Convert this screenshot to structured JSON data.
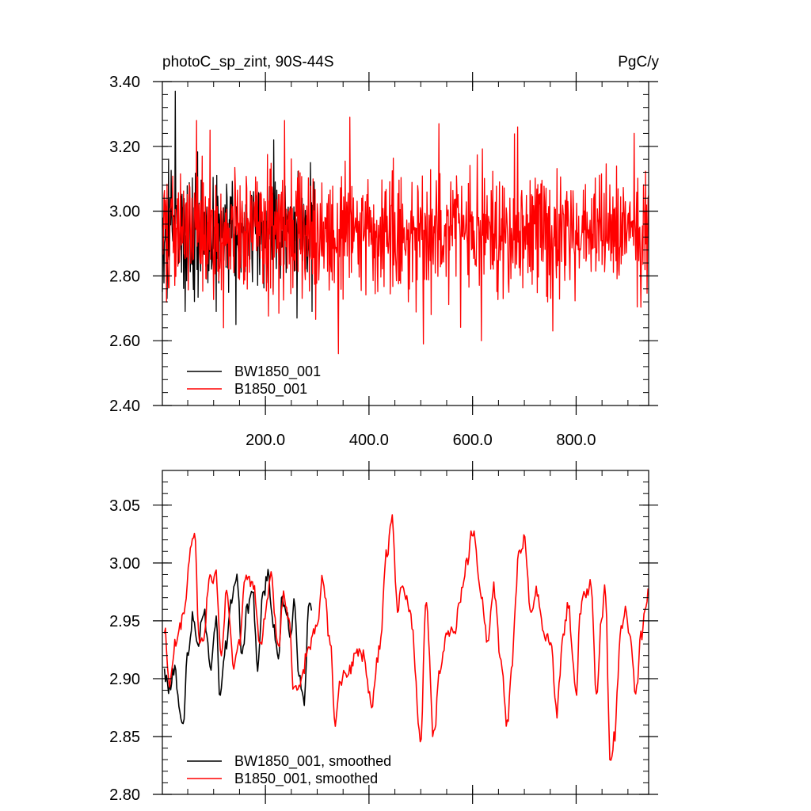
{
  "colors": {
    "background": "#ffffff",
    "axis": "#000000",
    "series_black": "#000000",
    "series_red": "#ff0000"
  },
  "chart_data": [
    {
      "type": "line",
      "title": "photoC_sp_zint, 90S-44S",
      "units": "PgC/y",
      "xlim": [
        1,
        940
      ],
      "ylim": [
        2.4,
        3.4
      ],
      "x_ticks": [
        200,
        400,
        600,
        800
      ],
      "x_tick_labels": [
        "200.0",
        "400.0",
        "600.0",
        "800.0"
      ],
      "x_minor_step": 50,
      "y_ticks": [
        2.4,
        2.6,
        2.8,
        3.0,
        3.2,
        3.4
      ],
      "y_tick_labels": [
        "2.40",
        "2.60",
        "2.80",
        "3.00",
        "3.20",
        "3.40"
      ],
      "y_minor_step": 0.04,
      "legend_position": "bottom-left",
      "series": [
        {
          "name": "BW1850_001",
          "color": "#000000",
          "start_year": 1,
          "end_year": 295,
          "mean": 2.93,
          "sd": 0.11,
          "min": 2.65,
          "max": 3.37,
          "seed": 17,
          "anchors": [
            [
              1,
              2.75
            ],
            [
              10,
              2.73
            ],
            [
              26,
              3.37
            ],
            [
              45,
              2.69
            ],
            [
              143,
              2.65
            ],
            [
              216,
              3.22
            ],
            [
              261,
              2.67
            ],
            [
              287,
              3.15
            ]
          ]
        },
        {
          "name": "B1850_001",
          "color": "#ff0000",
          "start_year": 1,
          "end_year": 940,
          "mean": 2.94,
          "sd": 0.11,
          "min": 2.56,
          "max": 3.29,
          "seed": 101,
          "anchors": [
            [
              67,
              3.28
            ],
            [
              119,
              2.64
            ],
            [
              237,
              3.28
            ],
            [
              341,
              2.56
            ],
            [
              363,
              3.29
            ],
            [
              505,
              2.59
            ],
            [
              535,
              3.27
            ],
            [
              617,
              2.6
            ],
            [
              687,
              3.26
            ],
            [
              755,
              2.63
            ],
            [
              912,
              3.24
            ]
          ]
        }
      ]
    },
    {
      "type": "line",
      "xlim": [
        1,
        940
      ],
      "ylim": [
        2.8,
        3.08
      ],
      "x_ticks": [
        200,
        400,
        600,
        800
      ],
      "x_minor_step": 50,
      "y_ticks": [
        2.8,
        2.85,
        2.9,
        2.95,
        3.0,
        3.05
      ],
      "y_tick_labels": [
        "2.80",
        "2.85",
        "2.90",
        "2.95",
        "3.00",
        "3.05"
      ],
      "y_minor_step": 0.01,
      "legend_position": "bottom-left",
      "series": [
        {
          "name": "BW1850_001, smoothed",
          "color": "#000000",
          "start_year": 5,
          "end_year": 290,
          "anchors": [
            [
              5,
              2.905
            ],
            [
              15,
              2.89
            ],
            [
              25,
              2.91
            ],
            [
              35,
              2.873
            ],
            [
              40,
              2.855
            ],
            [
              50,
              2.92
            ],
            [
              60,
              2.955
            ],
            [
              70,
              2.93
            ],
            [
              80,
              2.96
            ],
            [
              95,
              2.91
            ],
            [
              105,
              2.955
            ],
            [
              112,
              2.882
            ],
            [
              125,
              2.93
            ],
            [
              135,
              2.97
            ],
            [
              145,
              2.985
            ],
            [
              155,
              2.92
            ],
            [
              165,
              2.96
            ],
            [
              175,
              2.98
            ],
            [
              185,
              2.91
            ],
            [
              195,
              2.97
            ],
            [
              205,
              2.99
            ],
            [
              215,
              2.95
            ],
            [
              225,
              2.915
            ],
            [
              232,
              2.97
            ],
            [
              242,
              2.96
            ],
            [
              248,
              2.93
            ],
            [
              255,
              2.965
            ],
            [
              265,
              2.905
            ],
            [
              275,
              2.88
            ],
            [
              283,
              2.96
            ],
            [
              290,
              2.965
            ]
          ]
        },
        {
          "name": "B1850_001, smoothed",
          "color": "#ff0000",
          "start_year": 5,
          "end_year": 940,
          "anchors": [
            [
              5,
              2.945
            ],
            [
              15,
              2.89
            ],
            [
              25,
              2.93
            ],
            [
              35,
              2.945
            ],
            [
              45,
              2.96
            ],
            [
              55,
              3.01
            ],
            [
              63,
              3.03
            ],
            [
              72,
              2.93
            ],
            [
              80,
              2.93
            ],
            [
              92,
              2.985
            ],
            [
              104,
              2.99
            ],
            [
              115,
              2.915
            ],
            [
              125,
              2.975
            ],
            [
              140,
              2.91
            ],
            [
              150,
              2.93
            ],
            [
              160,
              2.985
            ],
            [
              175,
              2.985
            ],
            [
              190,
              2.93
            ],
            [
              200,
              2.955
            ],
            [
              210,
              2.99
            ],
            [
              225,
              2.925
            ],
            [
              235,
              2.975
            ],
            [
              245,
              2.95
            ],
            [
              255,
              2.89
            ],
            [
              265,
              2.89
            ],
            [
              285,
              2.93
            ],
            [
              300,
              2.945
            ],
            [
              310,
              2.99
            ],
            [
              325,
              2.93
            ],
            [
              335,
              2.86
            ],
            [
              345,
              2.9
            ],
            [
              360,
              2.905
            ],
            [
              375,
              2.92
            ],
            [
              390,
              2.92
            ],
            [
              405,
              2.875
            ],
            [
              420,
              2.925
            ],
            [
              435,
              3.01
            ],
            [
              445,
              3.04
            ],
            [
              455,
              2.96
            ],
            [
              465,
              2.98
            ],
            [
              480,
              2.955
            ],
            [
              500,
              2.85
            ],
            [
              510,
              2.97
            ],
            [
              525,
              2.85
            ],
            [
              537,
              2.91
            ],
            [
              550,
              2.94
            ],
            [
              565,
              2.94
            ],
            [
              575,
              2.97
            ],
            [
              590,
              3.0
            ],
            [
              600,
              3.03
            ],
            [
              615,
              2.975
            ],
            [
              630,
              2.93
            ],
            [
              640,
              2.98
            ],
            [
              655,
              2.915
            ],
            [
              667,
              2.86
            ],
            [
              675,
              2.91
            ],
            [
              690,
              3.01
            ],
            [
              700,
              3.02
            ],
            [
              712,
              2.96
            ],
            [
              725,
              2.975
            ],
            [
              740,
              2.935
            ],
            [
              752,
              2.93
            ],
            [
              762,
              2.87
            ],
            [
              775,
              2.935
            ],
            [
              785,
              2.965
            ],
            [
              792,
              2.925
            ],
            [
              800,
              2.885
            ],
            [
              808,
              2.96
            ],
            [
              818,
              2.975
            ],
            [
              828,
              2.98
            ],
            [
              840,
              2.885
            ],
            [
              848,
              2.95
            ],
            [
              856,
              2.98
            ],
            [
              866,
              2.83
            ],
            [
              874,
              2.85
            ],
            [
              886,
              2.94
            ],
            [
              895,
              2.96
            ],
            [
              905,
              2.93
            ],
            [
              915,
              2.885
            ],
            [
              925,
              2.935
            ],
            [
              933,
              2.96
            ],
            [
              940,
              2.975
            ]
          ]
        }
      ]
    }
  ]
}
